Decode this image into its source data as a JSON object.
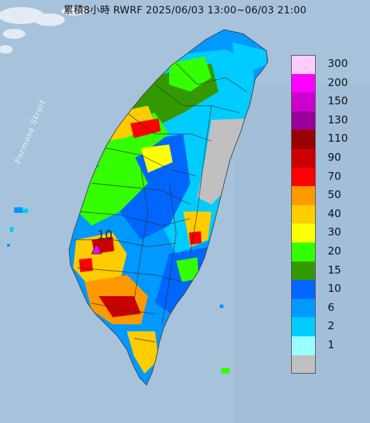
{
  "title": "累積8小時 RWRF 2025/06/03 13:00~06/03 21:00",
  "strait_label": "Formosa Strait",
  "max_label": "10",
  "legend": [
    {
      "label": "300",
      "color": "#ffccff"
    },
    {
      "label": "200",
      "color": "#ff00ff"
    },
    {
      "label": "150",
      "color": "#cc00cc"
    },
    {
      "label": "130",
      "color": "#990099"
    },
    {
      "label": "110",
      "color": "#990000"
    },
    {
      "label": "90",
      "color": "#cc0000"
    },
    {
      "label": "70",
      "color": "#ff0000"
    },
    {
      "label": "50",
      "color": "#ff9900"
    },
    {
      "label": "40",
      "color": "#ffcc00"
    },
    {
      "label": "30",
      "color": "#ffff00"
    },
    {
      "label": "20",
      "color": "#33ff00"
    },
    {
      "label": "15",
      "color": "#339900"
    },
    {
      "label": "10",
      "color": "#0066ff"
    },
    {
      "label": "6",
      "color": "#0099ff"
    },
    {
      "label": "2",
      "color": "#00ccff"
    },
    {
      "label": "1",
      "color": "#99ffff"
    },
    {
      "label": "",
      "color": "#c0c0c0"
    }
  ]
}
